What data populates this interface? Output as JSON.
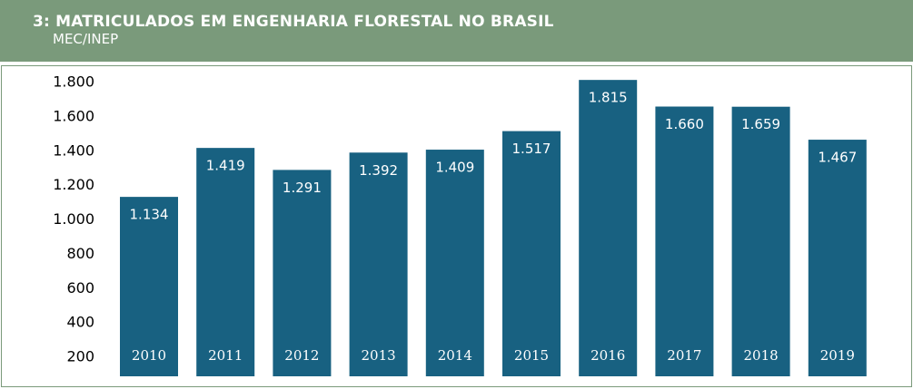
{
  "header": {
    "title": "3: MATRICULADOS EM ENGENHARIA FLORESTAL NO BRASIL",
    "subtitle": "MEC/INEP"
  },
  "colors": {
    "header_bg": "#7a9a7b",
    "bar": "#186181"
  },
  "chart_data": {
    "type": "bar",
    "title": "3: MATRICULADOS EM ENGENHARIA FLORESTAL NO BRASIL",
    "subtitle": "MEC/INEP",
    "categories": [
      "2010",
      "2011",
      "2012",
      "2013",
      "2014",
      "2015",
      "2016",
      "2017",
      "2018",
      "2019"
    ],
    "values": [
      1134,
      1419,
      1291,
      1392,
      1409,
      1517,
      1815,
      1660,
      1659,
      1467
    ],
    "value_labels": [
      "1.134",
      "1.419",
      "1.291",
      "1.392",
      "1.409",
      "1.517",
      "1.815",
      "1.660",
      "1.659",
      "1.467"
    ],
    "yticks": [
      200,
      400,
      600,
      800,
      1000,
      1200,
      1400,
      1600,
      1800
    ],
    "ytick_labels": [
      "200",
      "400",
      "600",
      "800",
      "1.000",
      "1.200",
      "1.400",
      "1.600",
      "1.800"
    ],
    "ylim": [
      200,
      1800
    ],
    "xlabel": "",
    "ylabel": "",
    "grid": false,
    "legend": "none"
  }
}
